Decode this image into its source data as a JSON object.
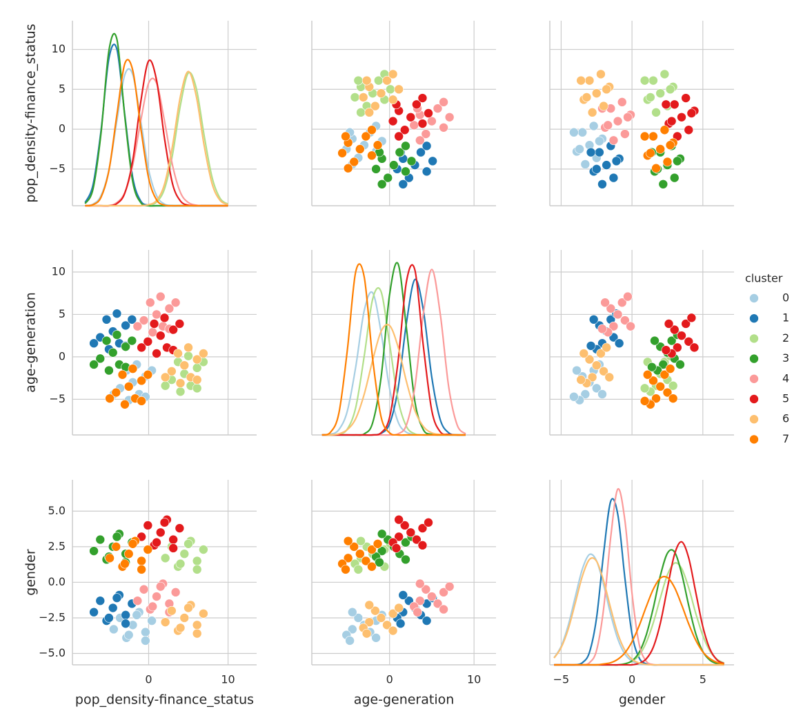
{
  "chart_data": {
    "type": "pairplot",
    "legend": {
      "title": "cluster"
    },
    "kde_lim": [
      0,
      0.35
    ],
    "variables": [
      {
        "label": "pop_density-finance_status",
        "lim": [
          -9.6,
          13.6
        ],
        "xticks": [
          0,
          10
        ],
        "yticks": [
          {
            "value": -5,
            "label": "−5"
          },
          0,
          5,
          10
        ],
        "kde_x": [
          -8,
          -7,
          -6,
          -5,
          -4,
          -3,
          -2,
          -1,
          0,
          1,
          2,
          3,
          4,
          5,
          6,
          7,
          8,
          9,
          10
        ],
        "kde_lim": [
          0,
          0.35
        ]
      },
      {
        "label": "age-generation",
        "lim": [
          -9.2,
          12.6
        ],
        "xticks": [
          0,
          10
        ],
        "yticks": [
          {
            "value": -5,
            "label": "−5"
          },
          0,
          5,
          10
        ],
        "kde_x": [
          -8,
          -7,
          -6,
          -5,
          -4,
          -3,
          -2,
          -1,
          0,
          1,
          2,
          3,
          4,
          5,
          6,
          7,
          8,
          9
        ],
        "kde_lim": [
          0,
          0.35
        ]
      },
      {
        "label": "gender",
        "lim": [
          -5.8,
          7.2
        ],
        "xticks": [
          {
            "value": -5,
            "label": "−5"
          },
          0,
          5
        ],
        "yticks": [
          {
            "value": -5,
            "label": "−5.0"
          },
          {
            "value": -2.5,
            "label": "−2.5"
          },
          {
            "value": 0,
            "label": "0.0"
          },
          2.5,
          {
            "value": 5,
            "label": "5.0"
          }
        ],
        "kde_x": [
          -5.5,
          -5,
          -4.5,
          -4,
          -3.5,
          -3,
          -2.5,
          -2,
          -1.5,
          -1,
          -0.5,
          0,
          0.5,
          1,
          1.5,
          2,
          2.5,
          3,
          3.5,
          4,
          4.5,
          5,
          5.5,
          6,
          6.5
        ],
        "kde_lim": [
          0,
          0.6
        ]
      }
    ],
    "series": [
      {
        "name": "0",
        "color": "#a6cee3",
        "values": [
          [
            -2,
            -0.4,
            -3.6,
            -1.2,
            -2.8,
            0.4,
            -4.4,
            -1.5,
            -2.5,
            -0.4
          ],
          [
            -3,
            -2.3,
            -3.7,
            -4.4,
            -1.6,
            -1.6,
            -4.4,
            -0.9,
            -5.1,
            -4.7
          ],
          [
            -3,
            -3.5,
            -2.5,
            -2.1,
            -3.9,
            -2.7,
            -3.3,
            -2.3,
            -3.7,
            -4.1
          ]
        ],
        "kde": [
          [
            0,
            0.003,
            0.019,
            0.068,
            0.161,
            0.248,
            0.248,
            0.161,
            0.068,
            0.019,
            0.003,
            0,
            0,
            0,
            0,
            0,
            0,
            0,
            0
          ],
          [
            0,
            0.001,
            0.01,
            0.045,
            0.129,
            0.235,
            0.269,
            0.194,
            0.088,
            0.025,
            0.005,
            0.001,
            0,
            0,
            0,
            0,
            0,
            0
          ],
          [
            0.023,
            0.06,
            0.128,
            0.221,
            0.311,
            0.358,
            0.337,
            0.259,
            0.163,
            0.084,
            0.035,
            0.012,
            0.003,
            0.001,
            0,
            0,
            0,
            0,
            0,
            0,
            0,
            0,
            0,
            0,
            0
          ]
        ]
      },
      {
        "name": "1",
        "color": "#1f78b4",
        "values": [
          [
            -4.5,
            -2.9,
            -6.1,
            -3.7,
            -5.3,
            -2.1,
            -6.9,
            -4,
            -5,
            -2.9
          ],
          [
            3,
            3.7,
            2.3,
            1.6,
            4.4,
            4.4,
            1.6,
            5.1,
            0.9,
            1.3
          ],
          [
            -1.8,
            -2.3,
            -1.3,
            -0.9,
            -2.7,
            -1.5,
            -2.1,
            -1.1,
            -2.5,
            -2.9
          ]
        ],
        "kde": [
          [
            0.006,
            0.04,
            0.142,
            0.279,
            0.296,
            0.171,
            0.053,
            0.009,
            0.001,
            0,
            0,
            0,
            0,
            0,
            0,
            0,
            0,
            0,
            0
          ],
          [
            0,
            0,
            0,
            0,
            0,
            0,
            0,
            0.003,
            0.021,
            0.087,
            0.212,
            0.294,
            0.236,
            0.109,
            0.029,
            0.004,
            0,
            0
          ],
          [
            0,
            0,
            0,
            0,
            0.007,
            0.041,
            0.153,
            0.363,
            0.531,
            0.487,
            0.281,
            0.1,
            0.023,
            0.003,
            0,
            0,
            0,
            0,
            0,
            0,
            0,
            0,
            0,
            0,
            0
          ]
        ]
      },
      {
        "name": "2",
        "color": "#b2df8a",
        "values": [
          [
            4.5,
            6.1,
            2.9,
            5.3,
            3.7,
            6.9,
            2.1,
            5,
            4,
            6.1
          ],
          [
            -2,
            -1.3,
            -2.7,
            -3.4,
            -0.6,
            -0.6,
            -3.4,
            0.1,
            -4.1,
            -3.7
          ],
          [
            2,
            1.5,
            2.5,
            2.9,
            1.1,
            2.3,
            1.7,
            2.7,
            1.3,
            0.9
          ]
        ],
        "kde": [
          [
            0,
            0,
            0,
            0,
            0,
            0,
            0,
            0,
            0.001,
            0.007,
            0.032,
            0.096,
            0.19,
            0.251,
            0.222,
            0.132,
            0.053,
            0.014,
            0.003
          ],
          [
            0,
            0,
            0.001,
            0.011,
            0.052,
            0.149,
            0.257,
            0.271,
            0.173,
            0.067,
            0.016,
            0.002,
            0,
            0,
            0,
            0,
            0,
            0
          ],
          [
            0,
            0,
            0,
            0,
            0,
            0,
            0,
            0,
            0,
            0,
            0.004,
            0.012,
            0.031,
            0.072,
            0.136,
            0.217,
            0.292,
            0.33,
            0.313,
            0.25,
            0.167,
            0.095,
            0.045,
            0.018,
            0.006
          ]
        ]
      },
      {
        "name": "3",
        "color": "#33a02c",
        "values": [
          [
            -4.5,
            -2.9,
            -6.1,
            -3.7,
            -5.3,
            -2.1,
            -6.9,
            -4,
            -5,
            -2.9
          ],
          [
            0.5,
            1.2,
            -0.2,
            -0.9,
            1.9,
            1.9,
            -0.9,
            2.6,
            -1.6,
            -1.2
          ],
          [
            2.5,
            2,
            3,
            3.4,
            1.6,
            2.8,
            2.2,
            3.2,
            1.8,
            1.4
          ]
        ],
        "kde": [
          [
            0.004,
            0.032,
            0.137,
            0.294,
            0.315,
            0.168,
            0.045,
            0.006,
            0,
            0,
            0,
            0,
            0,
            0,
            0,
            0,
            0,
            0,
            0
          ],
          [
            0,
            0,
            0,
            0,
            0,
            0.002,
            0.023,
            0.109,
            0.265,
            0.324,
            0.202,
            0.063,
            0.01,
            0.001,
            0,
            0,
            0,
            0
          ],
          [
            0,
            0,
            0,
            0,
            0,
            0,
            0,
            0,
            0,
            0,
            0.003,
            0.013,
            0.04,
            0.096,
            0.184,
            0.289,
            0.362,
            0.366,
            0.297,
            0.193,
            0.101,
            0.043,
            0.015,
            0.004,
            0.001
          ]
        ]
      },
      {
        "name": "4",
        "color": "#fb9a99",
        "values": [
          [
            1,
            2.6,
            -0.6,
            1.8,
            0.2,
            3.4,
            -1.4,
            1.5,
            0.5,
            2.6
          ],
          [
            5,
            5.7,
            4.3,
            3.6,
            6.4,
            6.4,
            3.6,
            7.1,
            2.9,
            3.3
          ],
          [
            -1,
            -1.5,
            -0.5,
            -0.1,
            -1.9,
            -0.7,
            -1.3,
            -0.3,
            -1.7,
            -2.1
          ]
        ],
        "kde": [
          [
            0,
            0,
            0,
            0,
            0.006,
            0.025,
            0.077,
            0.16,
            0.232,
            0.232,
            0.16,
            0.077,
            0.025,
            0.006,
            0.001,
            0,
            0,
            0,
            0
          ],
          [
            0,
            0,
            0,
            0,
            0,
            0,
            0,
            0,
            0,
            0.002,
            0.019,
            0.091,
            0.229,
            0.313,
            0.229,
            0.091,
            0.019,
            0.002
          ],
          [
            0,
            0,
            0,
            0,
            0,
            0.007,
            0.047,
            0.183,
            0.415,
            0.57,
            0.468,
            0.232,
            0.068,
            0.012,
            0.001,
            0,
            0,
            0,
            0,
            0,
            0,
            0,
            0,
            0,
            0
          ]
        ]
      },
      {
        "name": "5",
        "color": "#e31a1c",
        "values": [
          [
            1.5,
            3.1,
            -0.1,
            2.3,
            0.7,
            3.9,
            -0.9,
            2,
            1,
            3.1
          ],
          [
            2.5,
            3.2,
            1.8,
            1.1,
            3.9,
            3.9,
            1.1,
            4.6,
            0.4,
            0.8
          ],
          [
            3.5,
            3,
            4,
            4.4,
            2.6,
            3.8,
            3.2,
            4.2,
            2.8,
            2.4
          ]
        ],
        "kde": [
          [
            0,
            0,
            0,
            0,
            0.004,
            0.024,
            0.086,
            0.196,
            0.274,
            0.237,
            0.127,
            0.042,
            0.009,
            0.001,
            0,
            0,
            0,
            0,
            0
          ],
          [
            0,
            0,
            0,
            0,
            0,
            0,
            0,
            0.004,
            0.033,
            0.138,
            0.29,
            0.312,
            0.168,
            0.046,
            0.006,
            0.001,
            0,
            0
          ],
          [
            0,
            0,
            0,
            0,
            0,
            0,
            0,
            0,
            0,
            0,
            0,
            0,
            0.005,
            0.019,
            0.057,
            0.135,
            0.249,
            0.358,
            0.399,
            0.347,
            0.235,
            0.124,
            0.051,
            0.016,
            0.004
          ]
        ]
      },
      {
        "name": "6",
        "color": "#fdbf6f",
        "values": [
          [
            4.5,
            6.1,
            2.9,
            5.3,
            3.7,
            6.9,
            2.1,
            5,
            4,
            6.1
          ],
          [
            -1,
            -0.3,
            -1.7,
            -2.4,
            0.4,
            0.4,
            -2.4,
            1.1,
            -3.1,
            -2.7
          ],
          [
            -2.5,
            -3,
            -2,
            -1.6,
            -3.4,
            -2.2,
            -2.8,
            -1.8,
            -3.2,
            -3.6
          ]
        ],
        "kde": [
          [
            0,
            0,
            0,
            0,
            0,
            0,
            0,
            0,
            0.002,
            0.01,
            0.041,
            0.113,
            0.207,
            0.254,
            0.207,
            0.113,
            0.041,
            0.01,
            0.002
          ],
          [
            0,
            0,
            0.002,
            0.01,
            0.031,
            0.077,
            0.141,
            0.196,
            0.207,
            0.167,
            0.101,
            0.046,
            0.016,
            0.004,
            0.001,
            0,
            0,
            0
          ],
          [
            0.022,
            0.056,
            0.116,
            0.201,
            0.288,
            0.342,
            0.336,
            0.272,
            0.183,
            0.101,
            0.047,
            0.018,
            0.006,
            0.001,
            0,
            0,
            0,
            0,
            0,
            0,
            0,
            0,
            0,
            0,
            0
          ]
        ]
      },
      {
        "name": "7",
        "color": "#ff7f00",
        "values": [
          [
            -2.5,
            -0.9,
            -4.1,
            -1.7,
            -3.3,
            -0.1,
            -4.9,
            -2,
            -3,
            -0.9
          ],
          [
            -3.5,
            -2.8,
            -4.2,
            -4.9,
            -2.1,
            -2.1,
            -4.9,
            -1.4,
            -5.6,
            -5.2
          ],
          [
            2,
            1.5,
            2.5,
            2.9,
            1.1,
            2.3,
            1.7,
            2.7,
            1.3,
            0.9
          ]
        ],
        "kde": [
          [
            0,
            0.002,
            0.016,
            0.067,
            0.172,
            0.269,
            0.256,
            0.148,
            0.052,
            0.011,
            0.001,
            0,
            0,
            0,
            0,
            0,
            0,
            0,
            0
          ],
          [
            0,
            0.005,
            0.041,
            0.16,
            0.309,
            0.299,
            0.144,
            0.034,
            0.004,
            0,
            0,
            0,
            0,
            0,
            0,
            0,
            0,
            0
          ],
          [
            0,
            0,
            0,
            0,
            0,
            0,
            0,
            0.003,
            0.007,
            0.018,
            0.039,
            0.075,
            0.126,
            0.188,
            0.245,
            0.281,
            0.283,
            0.251,
            0.195,
            0.133,
            0.08,
            0.042,
            0.02,
            0.008,
            0.003
          ]
        ]
      }
    ]
  }
}
